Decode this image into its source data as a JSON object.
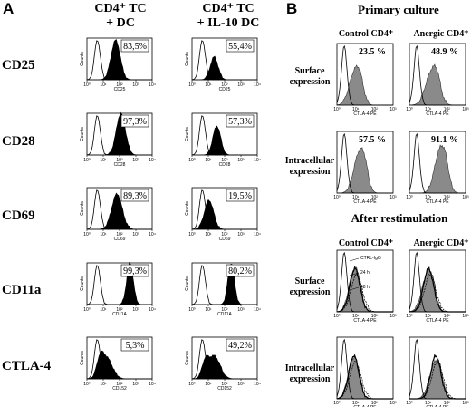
{
  "panelA": {
    "letter": "A",
    "col1_line1": "CD4⁺ TC",
    "col1_line2": "+ DC",
    "col2_line1": "CD4⁺ TC",
    "col2_line2": "+ IL-10 DC",
    "y_axis_label": "Counts",
    "rows": [
      {
        "marker": "CD25",
        "xlabel": "CD25",
        "dc": "83,5%",
        "il10": "55,4%"
      },
      {
        "marker": "CD28",
        "xlabel": "CD28",
        "dc": "97,3%",
        "il10": "57,3%"
      },
      {
        "marker": "CD69",
        "xlabel": "CD69",
        "dc": "89,3%",
        "il10": "19,5%"
      },
      {
        "marker": "CD11a",
        "xlabel": "CD11A",
        "dc": "99,3%",
        "il10": "80,2%"
      },
      {
        "marker": "CTLA-4",
        "xlabel": "CD152",
        "dc": "5,3%",
        "il10": "49,2%"
      }
    ]
  },
  "panelB": {
    "letter": "B",
    "primary_title": "Primary culture",
    "restim_title": "After restimulation",
    "col1": "Control CD4⁺",
    "col2": "Anergic CD4⁺",
    "row_surface_1": "Surface",
    "row_surface_2": "expression",
    "row_intra_1": "Intracellular",
    "row_intra_2": "expression",
    "xlabel": "CTLA-4 PE",
    "primary": {
      "surface": [
        "23.5 %",
        "48.9 %"
      ],
      "intracellular": [
        "57.5 %",
        "91.1 %"
      ]
    },
    "legend": [
      "CTRL-IgG",
      "24 h",
      "48 h"
    ]
  }
}
